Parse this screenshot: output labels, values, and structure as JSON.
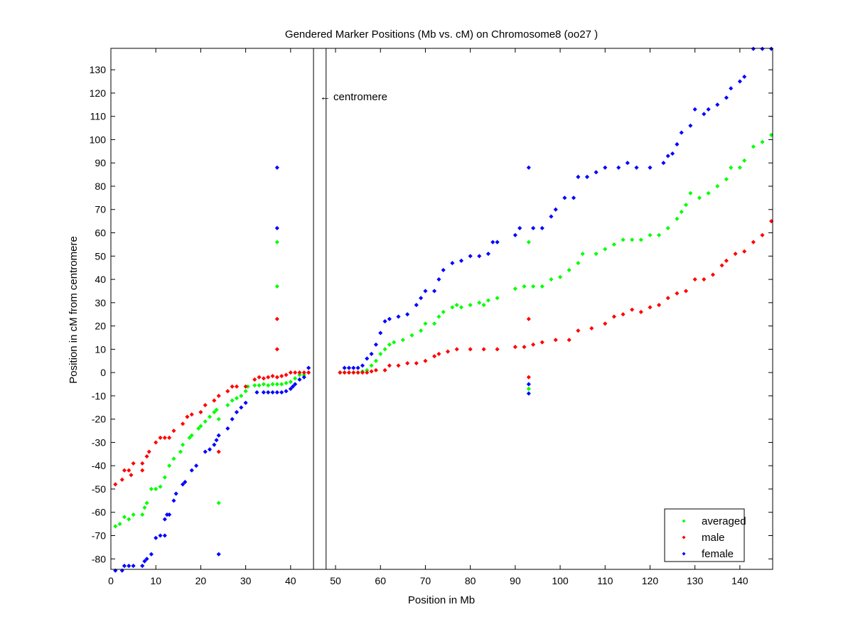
{
  "chart_data": {
    "type": "scatter",
    "title": "Gendered Marker Positions (Mb vs. cM) on Chromosome8 (oo27 )",
    "xlabel": "Position in Mb",
    "ylabel": "Position in cM from centromere",
    "xlim": [
      0,
      147.3
    ],
    "ylim": [
      -84.5,
      139.2
    ],
    "xticks": [
      0,
      10,
      20,
      30,
      40,
      50,
      60,
      70,
      80,
      90,
      100,
      110,
      120,
      130,
      140
    ],
    "yticks": [
      -80,
      -70,
      -60,
      -50,
      -40,
      -30,
      -20,
      -10,
      0,
      10,
      20,
      30,
      40,
      50,
      60,
      70,
      80,
      90,
      100,
      110,
      120,
      130
    ],
    "grid": false,
    "legend_position": "bottom-right",
    "annotation": {
      "text": "← centromere",
      "x": 46.5,
      "y": 118.5
    },
    "centromere_lines": [
      45.1,
      47.9
    ],
    "series": [
      {
        "name": "averaged",
        "color": "#00ff00",
        "points": [
          [
            1,
            -66
          ],
          [
            2,
            -65
          ],
          [
            3,
            -62
          ],
          [
            4,
            -63
          ],
          [
            5,
            -61
          ],
          [
            7,
            -61
          ],
          [
            7.5,
            -58
          ],
          [
            8,
            -56
          ],
          [
            9,
            -50
          ],
          [
            10,
            -50
          ],
          [
            11,
            -49
          ],
          [
            12,
            -45
          ],
          [
            13,
            -40
          ],
          [
            14,
            -37
          ],
          [
            15.5,
            -34
          ],
          [
            16,
            -31
          ],
          [
            17.5,
            -28
          ],
          [
            18,
            -27
          ],
          [
            19.5,
            -24
          ],
          [
            20,
            -23
          ],
          [
            21,
            -21
          ],
          [
            22,
            -19
          ],
          [
            23,
            -17
          ],
          [
            23.5,
            -16
          ],
          [
            24,
            -20
          ],
          [
            26,
            -14
          ],
          [
            27,
            -12
          ],
          [
            28,
            -11
          ],
          [
            29,
            -10
          ],
          [
            30,
            -8
          ],
          [
            30.5,
            -6
          ],
          [
            32,
            -5.5
          ],
          [
            33,
            -5.5
          ],
          [
            34,
            -5
          ],
          [
            35,
            -5.5
          ],
          [
            36,
            -5
          ],
          [
            37,
            -5
          ],
          [
            38,
            -5
          ],
          [
            39,
            -4.5
          ],
          [
            40,
            -4
          ],
          [
            41,
            -2.5
          ],
          [
            42,
            -1
          ],
          [
            43,
            -1
          ],
          [
            44,
            0
          ],
          [
            24,
            -56
          ],
          [
            37,
            56
          ],
          [
            37,
            37
          ],
          [
            51,
            0
          ],
          [
            52,
            0
          ],
          [
            53,
            0
          ],
          [
            54,
            0
          ],
          [
            55,
            0
          ],
          [
            56,
            0.5
          ],
          [
            57,
            1
          ],
          [
            58,
            3
          ],
          [
            59,
            5
          ],
          [
            60,
            8
          ],
          [
            61,
            10
          ],
          [
            62,
            12
          ],
          [
            63,
            13
          ],
          [
            65,
            14
          ],
          [
            67,
            16
          ],
          [
            69,
            18
          ],
          [
            70,
            21
          ],
          [
            72,
            21
          ],
          [
            73,
            24
          ],
          [
            74,
            26
          ],
          [
            76,
            28
          ],
          [
            77,
            29
          ],
          [
            78,
            28
          ],
          [
            80,
            29
          ],
          [
            82,
            30
          ],
          [
            83,
            29
          ],
          [
            84,
            31
          ],
          [
            86,
            32
          ],
          [
            90,
            36
          ],
          [
            92,
            37
          ],
          [
            94,
            37
          ],
          [
            96,
            37
          ],
          [
            98,
            40
          ],
          [
            100,
            41
          ],
          [
            102,
            44
          ],
          [
            104,
            47
          ],
          [
            105,
            51
          ],
          [
            108,
            51
          ],
          [
            110,
            53
          ],
          [
            112,
            55
          ],
          [
            114,
            57
          ],
          [
            116,
            57
          ],
          [
            118,
            57
          ],
          [
            120,
            59
          ],
          [
            122,
            59
          ],
          [
            124,
            62
          ],
          [
            126,
            66
          ],
          [
            127,
            69
          ],
          [
            128,
            72
          ],
          [
            129,
            77
          ],
          [
            131,
            75
          ],
          [
            133,
            77
          ],
          [
            135,
            80
          ],
          [
            137,
            83
          ],
          [
            138,
            88
          ],
          [
            140,
            88
          ],
          [
            141,
            91
          ],
          [
            143,
            97
          ],
          [
            145,
            99
          ],
          [
            147,
            102
          ],
          [
            93,
            56
          ],
          [
            93,
            -7
          ]
        ]
      },
      {
        "name": "male",
        "color": "#ff0000",
        "points": [
          [
            1,
            -48
          ],
          [
            2.5,
            -46
          ],
          [
            3,
            -42
          ],
          [
            4,
            -42
          ],
          [
            4.5,
            -44
          ],
          [
            5,
            -39
          ],
          [
            7,
            -39
          ],
          [
            7,
            -42
          ],
          [
            8,
            -36
          ],
          [
            8.5,
            -34
          ],
          [
            10,
            -30
          ],
          [
            11,
            -28
          ],
          [
            12,
            -28
          ],
          [
            13,
            -28
          ],
          [
            14,
            -25
          ],
          [
            16,
            -22
          ],
          [
            17,
            -19
          ],
          [
            18,
            -18
          ],
          [
            20,
            -17
          ],
          [
            21,
            -14
          ],
          [
            23,
            -12
          ],
          [
            24,
            -10
          ],
          [
            24,
            -34
          ],
          [
            26,
            -8
          ],
          [
            27,
            -6
          ],
          [
            28,
            -6
          ],
          [
            30,
            -6
          ],
          [
            32,
            -3
          ],
          [
            33,
            -2
          ],
          [
            34,
            -2.5
          ],
          [
            35,
            -2
          ],
          [
            36,
            -1.5
          ],
          [
            37,
            -2
          ],
          [
            38,
            -1.5
          ],
          [
            39,
            -1
          ],
          [
            40,
            0
          ],
          [
            41,
            0
          ],
          [
            42,
            0
          ],
          [
            43,
            0
          ],
          [
            44,
            0
          ],
          [
            37,
            23
          ],
          [
            37,
            10
          ],
          [
            51,
            0
          ],
          [
            52,
            0
          ],
          [
            53,
            0
          ],
          [
            54,
            0
          ],
          [
            55,
            0
          ],
          [
            56,
            0
          ],
          [
            57,
            0
          ],
          [
            58,
            0.5
          ],
          [
            59,
            1
          ],
          [
            61,
            1
          ],
          [
            62,
            3
          ],
          [
            64,
            3
          ],
          [
            66,
            4
          ],
          [
            68,
            4
          ],
          [
            70,
            5
          ],
          [
            72,
            7
          ],
          [
            73,
            8
          ],
          [
            75,
            9
          ],
          [
            77,
            10
          ],
          [
            80,
            10
          ],
          [
            83,
            10
          ],
          [
            86,
            10
          ],
          [
            90,
            11
          ],
          [
            92,
            11
          ],
          [
            94,
            12
          ],
          [
            96,
            13
          ],
          [
            99,
            14
          ],
          [
            102,
            14
          ],
          [
            104,
            18
          ],
          [
            107,
            19
          ],
          [
            110,
            21
          ],
          [
            112,
            24
          ],
          [
            114,
            25
          ],
          [
            116,
            27
          ],
          [
            118,
            26
          ],
          [
            120,
            28
          ],
          [
            122,
            29
          ],
          [
            124,
            32
          ],
          [
            126,
            34
          ],
          [
            128,
            35
          ],
          [
            130,
            40
          ],
          [
            132,
            40
          ],
          [
            134,
            42
          ],
          [
            136,
            46
          ],
          [
            137,
            48
          ],
          [
            139,
            51
          ],
          [
            141,
            52
          ],
          [
            143,
            56
          ],
          [
            145,
            59
          ],
          [
            147,
            65
          ],
          [
            93,
            23
          ],
          [
            93,
            -2
          ]
        ]
      },
      {
        "name": "female",
        "color": "#0000ff",
        "points": [
          [
            1,
            -85
          ],
          [
            2.5,
            -85
          ],
          [
            3,
            -83
          ],
          [
            4,
            -83
          ],
          [
            5,
            -83
          ],
          [
            7,
            -83
          ],
          [
            7.5,
            -81
          ],
          [
            8,
            -80
          ],
          [
            9,
            -78
          ],
          [
            10,
            -71
          ],
          [
            11,
            -70
          ],
          [
            12,
            -70
          ],
          [
            12,
            -63
          ],
          [
            12.5,
            -61
          ],
          [
            13,
            -61
          ],
          [
            14,
            -55
          ],
          [
            14.5,
            -52
          ],
          [
            16,
            -48
          ],
          [
            16.5,
            -47
          ],
          [
            18,
            -42
          ],
          [
            19,
            -40
          ],
          [
            21,
            -34
          ],
          [
            22,
            -33
          ],
          [
            23,
            -31
          ],
          [
            23.5,
            -29
          ],
          [
            24,
            -27
          ],
          [
            26,
            -24
          ],
          [
            27,
            -20
          ],
          [
            28,
            -17
          ],
          [
            29,
            -15
          ],
          [
            30,
            -13
          ],
          [
            32.5,
            -8.5
          ],
          [
            34,
            -8.5
          ],
          [
            35,
            -8.5
          ],
          [
            36,
            -8.5
          ],
          [
            37,
            -8.5
          ],
          [
            38,
            -8.5
          ],
          [
            39,
            -8
          ],
          [
            40,
            -7
          ],
          [
            40.5,
            -6
          ],
          [
            41,
            -5
          ],
          [
            42,
            -3
          ],
          [
            43,
            -2
          ],
          [
            44,
            2
          ],
          [
            24,
            -78
          ],
          [
            37,
            88
          ],
          [
            37,
            62
          ],
          [
            52,
            2
          ],
          [
            53,
            2
          ],
          [
            54,
            2
          ],
          [
            55,
            2
          ],
          [
            56,
            3
          ],
          [
            57,
            6
          ],
          [
            58,
            8
          ],
          [
            59,
            12
          ],
          [
            60,
            17
          ],
          [
            61,
            22
          ],
          [
            62,
            23
          ],
          [
            64,
            24
          ],
          [
            66,
            25
          ],
          [
            68,
            29
          ],
          [
            69,
            32
          ],
          [
            70,
            35
          ],
          [
            72,
            35
          ],
          [
            73,
            40
          ],
          [
            74,
            44
          ],
          [
            76,
            47
          ],
          [
            78,
            48
          ],
          [
            80,
            50
          ],
          [
            82,
            50
          ],
          [
            84,
            51
          ],
          [
            85,
            56
          ],
          [
            86,
            56
          ],
          [
            90,
            59
          ],
          [
            91,
            62
          ],
          [
            94,
            62
          ],
          [
            96,
            62
          ],
          [
            98,
            67
          ],
          [
            99,
            70
          ],
          [
            101,
            75
          ],
          [
            103,
            75
          ],
          [
            104,
            84
          ],
          [
            106,
            84
          ],
          [
            108,
            86
          ],
          [
            110,
            88
          ],
          [
            113,
            88
          ],
          [
            115,
            90
          ],
          [
            117,
            88
          ],
          [
            120,
            88
          ],
          [
            123,
            90
          ],
          [
            124,
            93
          ],
          [
            125,
            94
          ],
          [
            126,
            98
          ],
          [
            127,
            103
          ],
          [
            129,
            106
          ],
          [
            130,
            113
          ],
          [
            132,
            111
          ],
          [
            133,
            113
          ],
          [
            135,
            115
          ],
          [
            137,
            118
          ],
          [
            138,
            122
          ],
          [
            140,
            125
          ],
          [
            141,
            127
          ],
          [
            143,
            139
          ],
          [
            145,
            139
          ],
          [
            147,
            139
          ],
          [
            93,
            88
          ],
          [
            93,
            -5
          ],
          [
            93,
            -9
          ]
        ]
      }
    ]
  }
}
